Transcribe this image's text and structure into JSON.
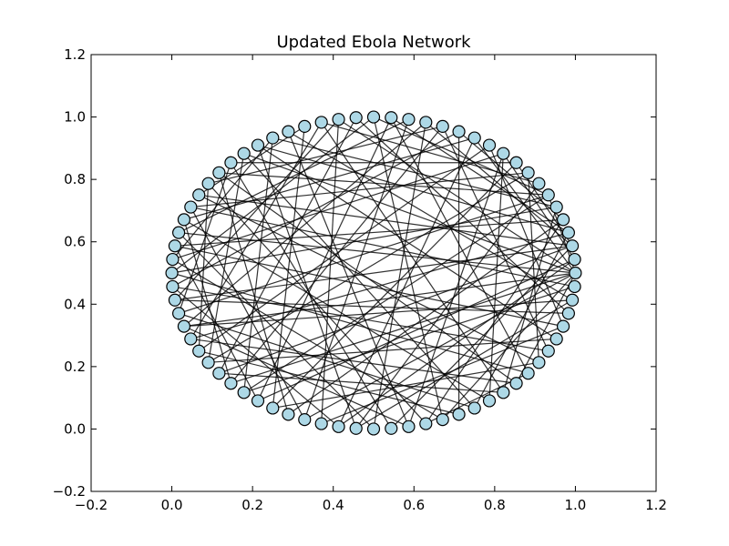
{
  "chart_data": {
    "type": "network",
    "title": "Updated Ebola Network",
    "xlabel": "",
    "ylabel": "",
    "xlim": [
      -0.2,
      1.2
    ],
    "ylim": [
      -0.2,
      1.2
    ],
    "x_ticks": [
      -0.2,
      0.0,
      0.2,
      0.4,
      0.6,
      0.8,
      1.0,
      1.2
    ],
    "y_ticks": [
      -0.2,
      0.0,
      0.2,
      0.4,
      0.6,
      0.8,
      1.0,
      1.2
    ],
    "x_tick_labels": [
      "−0.2",
      "0.0",
      "0.2",
      "0.4",
      "0.6",
      "0.8",
      "1.0",
      "1.2"
    ],
    "y_tick_labels": [
      "−0.2",
      "0.0",
      "0.2",
      "0.4",
      "0.6",
      "0.8",
      "1.0",
      "1.2"
    ],
    "grid": false,
    "node_layout": "circular",
    "node_count": 72,
    "layout_center": [
      0.5,
      0.5
    ],
    "layout_radius": 0.5,
    "node_color": "#add8e6",
    "node_edge_color": "#000000",
    "edge_color": "#000000",
    "edges": [
      [
        0,
        26
      ],
      [
        0,
        45
      ],
      [
        0,
        12
      ],
      [
        0,
        58
      ],
      [
        0,
        33
      ],
      [
        0,
        20
      ],
      [
        0,
        50
      ],
      [
        0,
        63
      ],
      [
        0,
        6
      ],
      [
        0,
        40
      ],
      [
        1,
        47
      ],
      [
        1,
        10
      ],
      [
        1,
        52
      ],
      [
        2,
        38
      ],
      [
        2,
        15
      ],
      [
        2,
        44
      ],
      [
        2,
        55
      ],
      [
        2,
        30
      ],
      [
        2,
        9
      ],
      [
        3,
        41
      ],
      [
        3,
        17
      ],
      [
        3,
        60
      ],
      [
        3,
        25
      ],
      [
        4,
        49
      ],
      [
        4,
        13
      ],
      [
        4,
        34
      ],
      [
        4,
        57
      ],
      [
        5,
        36
      ],
      [
        5,
        62
      ],
      [
        5,
        24
      ],
      [
        6,
        46
      ],
      [
        6,
        18
      ],
      [
        6,
        39
      ],
      [
        6,
        28
      ],
      [
        7,
        53
      ],
      [
        7,
        21
      ],
      [
        8,
        43
      ],
      [
        8,
        31
      ],
      [
        8,
        65
      ],
      [
        9,
        48
      ],
      [
        9,
        27
      ],
      [
        10,
        56
      ],
      [
        10,
        35
      ],
      [
        10,
        61
      ],
      [
        11,
        42
      ],
      [
        11,
        68
      ],
      [
        12,
        52
      ],
      [
        12,
        32
      ],
      [
        13,
        59
      ],
      [
        13,
        37
      ],
      [
        14,
        45
      ],
      [
        14,
        66
      ],
      [
        14,
        29
      ],
      [
        15,
        54
      ],
      [
        15,
        40
      ],
      [
        16,
        50
      ],
      [
        16,
        33
      ],
      [
        17,
        47
      ],
      [
        17,
        64
      ],
      [
        18,
        58
      ],
      [
        18,
        36
      ],
      [
        19,
        44
      ],
      [
        19,
        69
      ],
      [
        20,
        51
      ],
      [
        20,
        38
      ],
      [
        21,
        62
      ],
      [
        21,
        41
      ],
      [
        22,
        48
      ],
      [
        22,
        30
      ],
      [
        23,
        56
      ],
      [
        23,
        70
      ],
      [
        24,
        46
      ],
      [
        24,
        35
      ],
      [
        25,
        53
      ],
      [
        25,
        67
      ],
      [
        26,
        60
      ],
      [
        26,
        43
      ],
      [
        27,
        55
      ],
      [
        27,
        39
      ],
      [
        28,
        49
      ],
      [
        28,
        63
      ],
      [
        29,
        57
      ],
      [
        29,
        42
      ],
      [
        30,
        65
      ],
      [
        31,
        50
      ],
      [
        31,
        71
      ],
      [
        32,
        61
      ],
      [
        32,
        45
      ],
      [
        33,
        54
      ],
      [
        34,
        68
      ],
      [
        34,
        47
      ],
      [
        35,
        58
      ],
      [
        36,
        64
      ],
      [
        37,
        52
      ],
      [
        37,
        66
      ],
      [
        38,
        69
      ],
      [
        39,
        60
      ],
      [
        40,
        56
      ],
      [
        40,
        70
      ],
      [
        41,
        63
      ],
      [
        42,
        59
      ],
      [
        43,
        67
      ],
      [
        44,
        62
      ],
      [
        46,
        71
      ],
      [
        48,
        65
      ],
      [
        51,
        68
      ],
      [
        53,
        70
      ],
      [
        57,
        64
      ]
    ]
  }
}
